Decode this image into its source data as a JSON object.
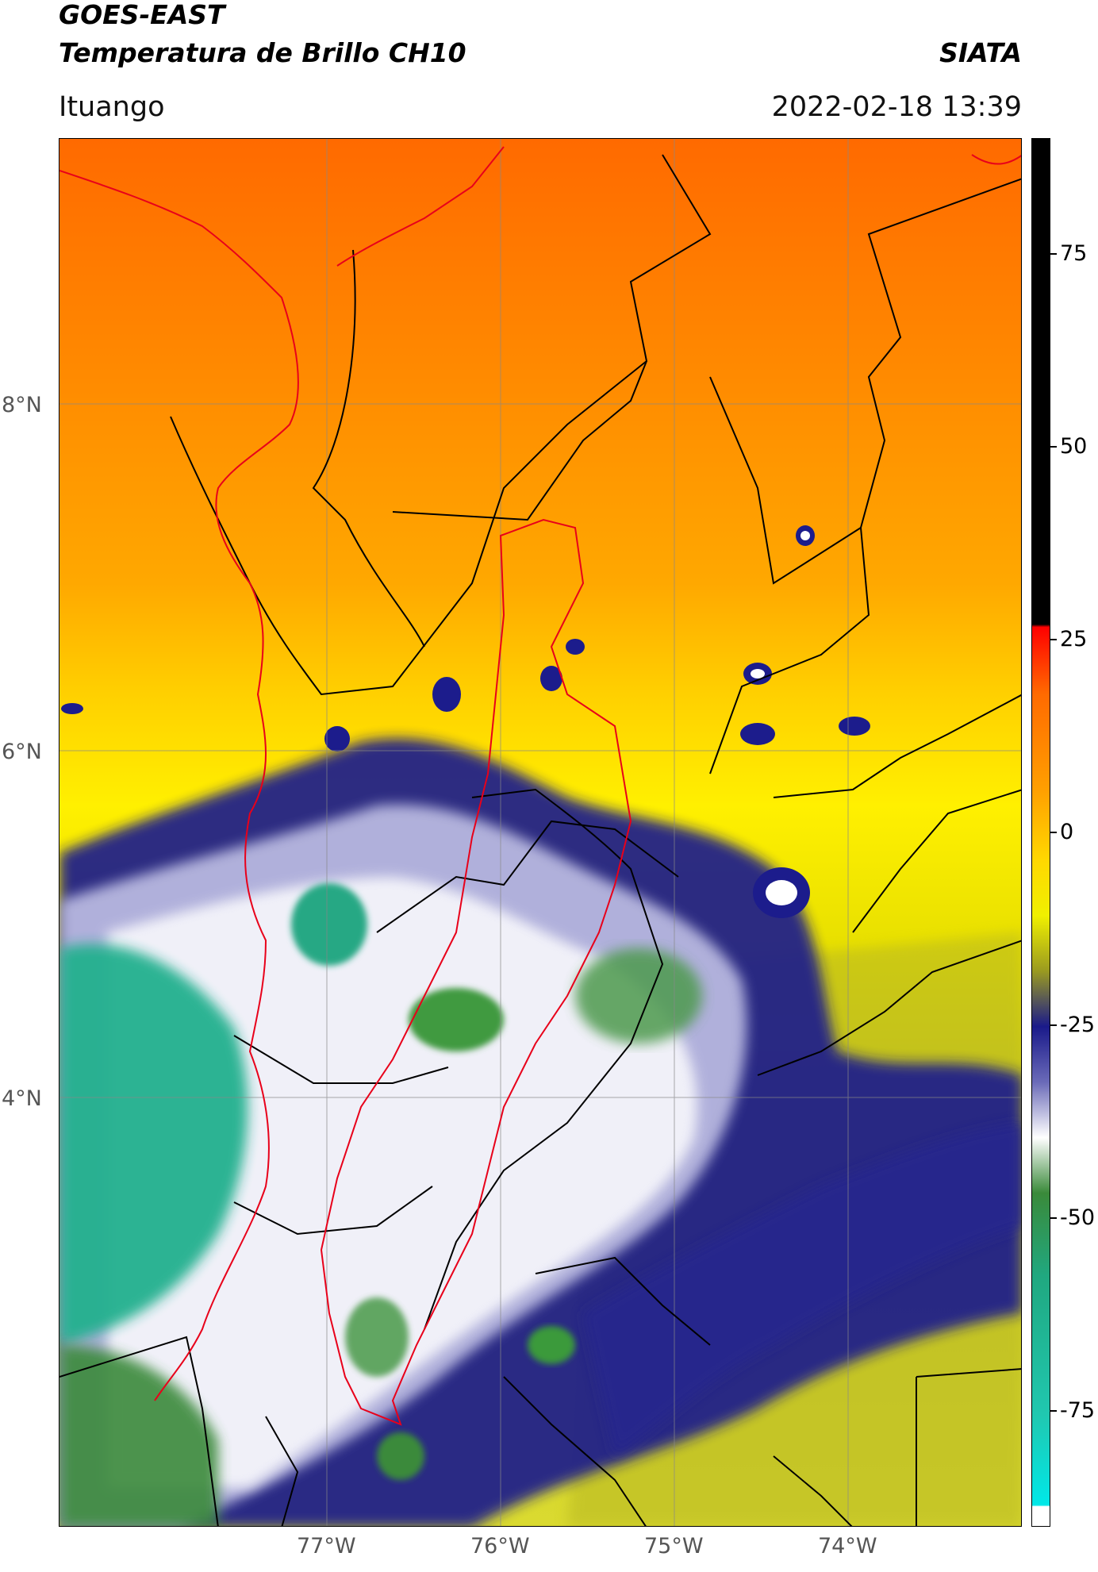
{
  "header": {
    "title_line1": "GOES-EAST",
    "title_line2": "Temperatura de Brillo CH10",
    "brand": "SIATA",
    "location": "Ituango",
    "datetime": "2022-02-18 13:39"
  },
  "map": {
    "lat_labels": [
      {
        "text": "8°N",
        "value": 8
      },
      {
        "text": "6°N",
        "value": 6
      },
      {
        "text": "4°N",
        "value": 4
      }
    ],
    "lon_labels": [
      {
        "text": "77°W",
        "value": -77
      },
      {
        "text": "76°W",
        "value": -76
      },
      {
        "text": "75°W",
        "value": -75
      },
      {
        "text": "74°W",
        "value": -74
      }
    ],
    "extent": {
      "lon_min": -78.55,
      "lon_max": -73.0,
      "lat_min": 2.0,
      "lat_max": 9.55
    }
  },
  "colorbar": {
    "ticks": [
      "75",
      "50",
      "25",
      "0",
      "-25",
      "-50",
      "-75"
    ],
    "tick_values": [
      75,
      50,
      25,
      0,
      -25,
      -50,
      -75
    ],
    "min": -90,
    "max": 90,
    "colors": {
      "black_top": "#000000",
      "red": "#ff0000",
      "orange": "#ff8800",
      "yellow": "#ffee00",
      "olive": "#9a9a20",
      "navy": "#1a1a8a",
      "white": "#ffffff",
      "green": "#2e8b35",
      "teal": "#20b090",
      "cyan": "#00e0e0"
    }
  }
}
